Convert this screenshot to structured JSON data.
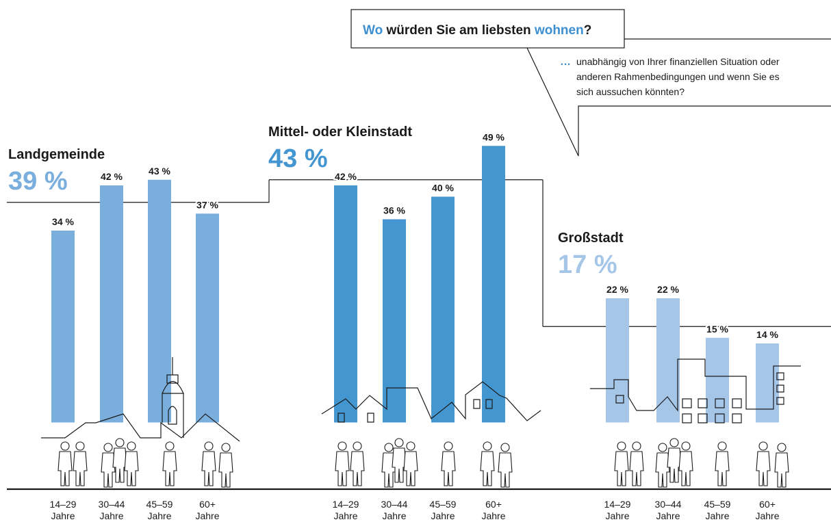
{
  "chart_data": {
    "type": "bar",
    "title_parts": [
      "Wo",
      "würden Sie am liebsten",
      "wohnen",
      "?"
    ],
    "title_accent": "#3d8fd0",
    "subtitle_lines": [
      "unabhängig von Ihrer finanziellen Situation oder",
      "anderen Rahmenbedingungen und wenn Sie es",
      "sich aussuchen könnten?"
    ],
    "categories": [
      "14–29 Jahre",
      "30–44 Jahre",
      "45–59 Jahre",
      "60+ Jahre"
    ],
    "ylim": [
      0,
      60
    ],
    "series": [
      {
        "name": "Landgemeinde",
        "total": 39,
        "total_label": "39 %",
        "color": "#7aaedc",
        "values": [
          34,
          42,
          43,
          37
        ],
        "value_labels": [
          "34 %",
          "42 %",
          "43 %",
          "37 %"
        ]
      },
      {
        "name": "Mittel- oder Kleinstadt",
        "total": 43,
        "total_label": "43 %",
        "color": "#4496d1",
        "values": [
          42,
          36,
          40,
          49
        ],
        "value_labels": [
          "42 %",
          "36 %",
          "40 %",
          "49 %"
        ]
      },
      {
        "name": "Großstadt",
        "total": 17,
        "total_label": "17 %",
        "color": "#a6c6e8",
        "values": [
          22,
          22,
          15,
          14
        ],
        "value_labels": [
          "22 %",
          "22 %",
          "15 %",
          "14 %"
        ]
      }
    ]
  }
}
